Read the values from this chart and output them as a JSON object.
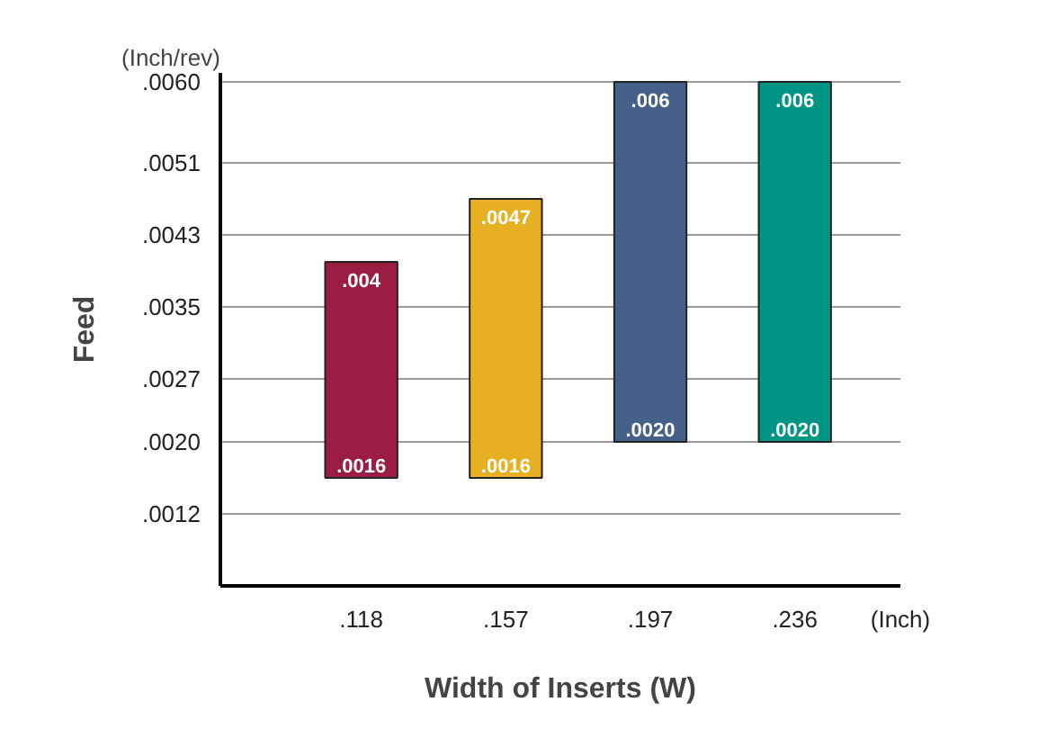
{
  "chart_data": {
    "type": "bar",
    "xlabel": "Width of Inserts (W)",
    "ylabel": "Feed",
    "categories": [
      ".118",
      ".157",
      ".197",
      ".236"
    ],
    "base": [
      0.0016,
      0.0016,
      0.002,
      0.002
    ],
    "values": [
      0.0024,
      0.0031,
      0.004,
      0.004
    ],
    "colors": [
      "#9b1d42",
      "#e6b022",
      "#466189",
      "#009485"
    ],
    "ylim": [
      0.0004,
      0.0061
    ],
    "yticks": [
      {
        "value": 0.0012,
        "label": ".0012"
      },
      {
        "value": 0.002,
        "label": ".0020"
      },
      {
        "value": 0.0027,
        "label": ".0027"
      },
      {
        "value": 0.0035,
        "label": ".0035"
      },
      {
        "value": 0.0043,
        "label": ".0043"
      },
      {
        "value": 0.0051,
        "label": ".0051"
      },
      {
        "value": 0.006,
        "label": ".0060"
      }
    ],
    "grid": "y",
    "annotations": [
      "(Inch/rev)",
      "(Inch)",
      {
        "text": ".004",
        "x": ".118",
        "y": 0.004
      },
      {
        "text": ".0016",
        "x": ".118",
        "y": 0.0016
      },
      {
        "text": ".0047",
        "x": ".157",
        "y": 0.0047
      },
      {
        "text": ".0016",
        "x": ".157",
        "y": 0.0016
      },
      {
        "text": ".006",
        "x": ".197",
        "y": 0.006
      },
      {
        "text": ".0020",
        "x": ".197",
        "y": 0.002
      },
      {
        "text": ".006",
        "x": ".236",
        "y": 0.006
      },
      {
        "text": ".0020",
        "x": ".236",
        "y": 0.002
      }
    ]
  }
}
